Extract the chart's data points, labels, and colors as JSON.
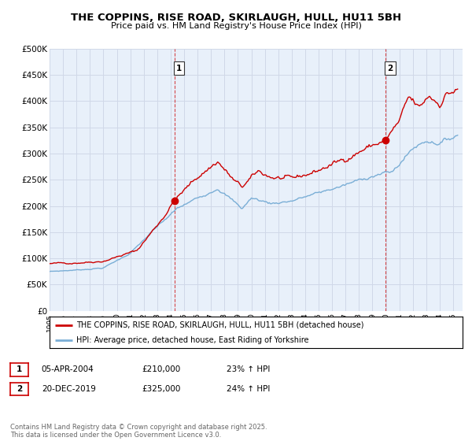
{
  "title": "THE COPPINS, RISE ROAD, SKIRLAUGH, HULL, HU11 5BH",
  "subtitle": "Price paid vs. HM Land Registry's House Price Index (HPI)",
  "ylim": [
    0,
    500000
  ],
  "xlim_start": 1995.0,
  "xlim_end": 2025.7,
  "ytick_labels": [
    "£0",
    "£50K",
    "£100K",
    "£150K",
    "£200K",
    "£250K",
    "£300K",
    "£350K",
    "£400K",
    "£450K",
    "£500K"
  ],
  "ytick_values": [
    0,
    50000,
    100000,
    150000,
    200000,
    250000,
    300000,
    350000,
    400000,
    450000,
    500000
  ],
  "line1_color": "#cc0000",
  "line2_color": "#7aaed6",
  "background_color": "#e8f0fa",
  "sale1_x": 2004.27,
  "sale1_y": 210000,
  "sale2_x": 2019.97,
  "sale2_y": 325000,
  "legend_label1": "THE COPPINS, RISE ROAD, SKIRLAUGH, HULL, HU11 5BH (detached house)",
  "legend_label2": "HPI: Average price, detached house, East Riding of Yorkshire",
  "info1_date": "05-APR-2004",
  "info1_price": "£210,000",
  "info1_hpi": "23% ↑ HPI",
  "info2_date": "20-DEC-2019",
  "info2_price": "£325,000",
  "info2_hpi": "24% ↑ HPI",
  "footer": "Contains HM Land Registry data © Crown copyright and database right 2025.\nThis data is licensed under the Open Government Licence v3.0.",
  "grid_color": "#d0d8e8",
  "vline_color": "#cc0000"
}
